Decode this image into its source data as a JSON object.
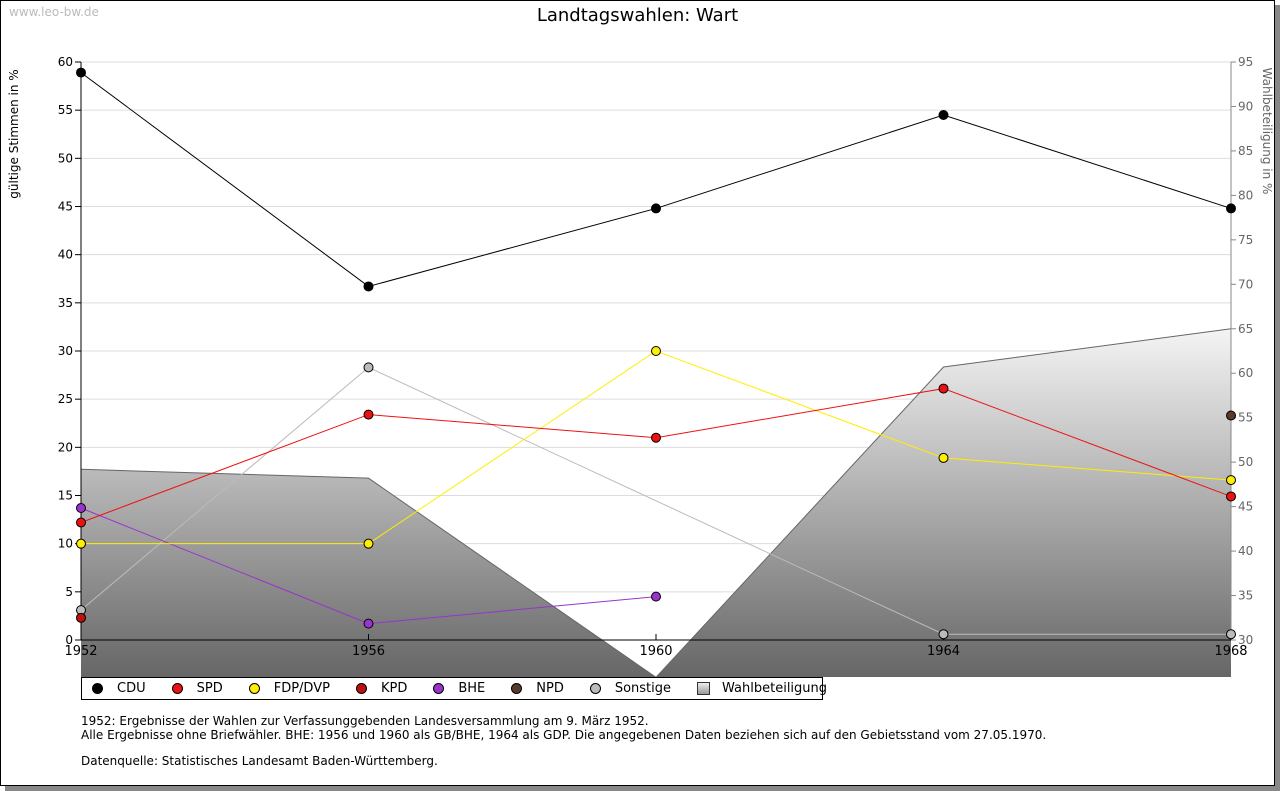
{
  "watermark": "www.leo-bw.de",
  "notes": [
    "1952: Ergebnisse der Wahlen zur Verfassunggebenden Landesversammlung am 9. März 1952.",
    "Alle Ergebnisse ohne Briefwähler. BHE: 1956 und 1960 als GB/BHE, 1964 als GDP. Die angegebenen Daten beziehen sich auf den Gebietsstand vom 27.05.1970.",
    "Datenquelle: Statistisches Landesamt Baden-Württemberg."
  ],
  "chart_data": {
    "type": "line",
    "title": "Landtagswahlen: Wart",
    "ylabel": "gültige Stimmen in %",
    "y2label": "Wahlbeteiligung in %",
    "x": [
      "1952",
      "1956",
      "1960",
      "1964",
      "1968"
    ],
    "ylim": [
      0,
      60
    ],
    "yticks": [
      0,
      5,
      10,
      15,
      20,
      25,
      30,
      35,
      40,
      45,
      50,
      55,
      60
    ],
    "y2lim": [
      30,
      95
    ],
    "y2ticks": [
      30,
      35,
      40,
      45,
      50,
      55,
      60,
      65,
      70,
      75,
      80,
      85,
      90,
      95
    ],
    "series": [
      {
        "name": "CDU",
        "color": "#000000",
        "values": [
          58.9,
          36.7,
          44.8,
          54.5,
          44.8
        ]
      },
      {
        "name": "SPD",
        "color": "#ee1111",
        "values": [
          12.2,
          23.4,
          21.0,
          26.1,
          14.9
        ]
      },
      {
        "name": "FDP/DVP",
        "color": "#ffee00",
        "values": [
          10.0,
          10.0,
          30.0,
          18.9,
          16.6
        ]
      },
      {
        "name": "KPD",
        "color": "#bb1111",
        "values": [
          2.3,
          null,
          null,
          null,
          null
        ]
      },
      {
        "name": "BHE",
        "color": "#9933cc",
        "values": [
          13.7,
          1.7,
          4.5,
          null,
          null
        ]
      },
      {
        "name": "NPD",
        "color": "#5a3a2a",
        "values": [
          null,
          null,
          null,
          null,
          23.3
        ]
      },
      {
        "name": "Sonstige",
        "color": "#bbbbbb",
        "values": [
          3.1,
          28.3,
          null,
          0.6,
          0.6
        ]
      }
    ],
    "area": {
      "name": "Wahlbeteiligung",
      "axis": "right",
      "values": [
        49.2,
        48.2,
        25.8,
        60.7,
        65.0
      ]
    }
  }
}
